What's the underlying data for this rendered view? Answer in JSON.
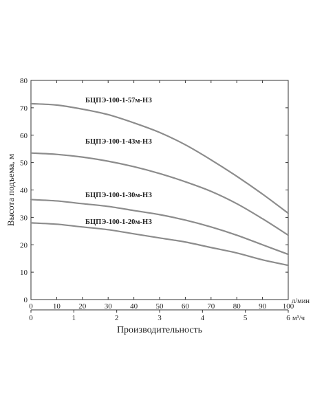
{
  "chart_data": {
    "type": "line",
    "ylabel": "Высота подъема, м",
    "xlabel": "Производительность",
    "ylim": [
      0,
      80
    ],
    "yticks": [
      0,
      10,
      20,
      30,
      40,
      50,
      60,
      70,
      80
    ],
    "x_primary": {
      "unit": "л/мин",
      "lim": [
        0,
        100
      ],
      "ticks": [
        0,
        10,
        20,
        30,
        40,
        50,
        60,
        70,
        80,
        90,
        100
      ]
    },
    "x_secondary": {
      "unit": "м³/ч",
      "lim": [
        0,
        6
      ],
      "ticks": [
        0,
        1,
        2,
        3,
        4,
        5,
        6
      ]
    },
    "grid": false,
    "x": [
      0,
      10,
      20,
      30,
      40,
      50,
      60,
      70,
      80,
      90,
      100
    ],
    "series": [
      {
        "name": "БЦПЭ-100-1-57м-НЗ",
        "color": "#8c8c8c",
        "values": [
          71.5,
          71.0,
          69.5,
          67.5,
          64.5,
          61.0,
          56.5,
          51.0,
          45.0,
          38.5,
          31.5
        ]
      },
      {
        "name": "БЦПЭ-100-1-43м-НЗ",
        "color": "#8c8c8c",
        "values": [
          53.5,
          53.0,
          52.0,
          50.5,
          48.5,
          46.0,
          43.0,
          39.5,
          35.0,
          29.5,
          23.5
        ]
      },
      {
        "name": "БЦПЭ-100-1-30м-НЗ",
        "color": "#8c8c8c",
        "values": [
          36.5,
          36.0,
          35.0,
          34.0,
          32.5,
          31.0,
          29.0,
          26.5,
          23.5,
          20.0,
          16.5
        ]
      },
      {
        "name": "БЦПЭ-100-1-20м-НЗ",
        "color": "#8c8c8c",
        "values": [
          28.0,
          27.5,
          26.5,
          25.5,
          24.0,
          22.5,
          21.0,
          19.0,
          17.0,
          14.5,
          12.5
        ]
      }
    ]
  }
}
